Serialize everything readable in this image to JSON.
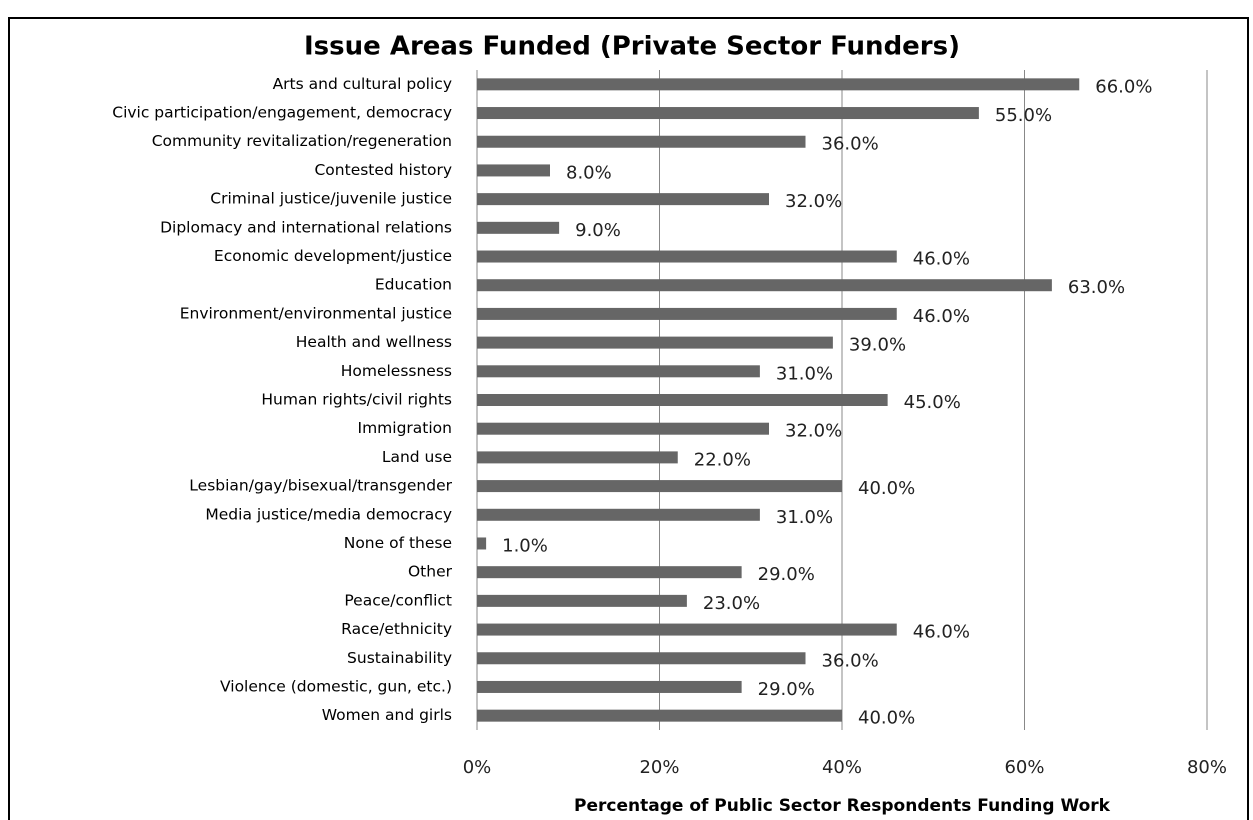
{
  "chart_data": {
    "type": "bar",
    "orientation": "horizontal",
    "title": "Issue Areas Funded (Private Sector Funders)",
    "x_label": "Percentage of Public Sector Respondents Funding Work",
    "categories": [
      "Arts and cultural policy",
      "Civic participation/engagement, democracy",
      "Community revitalization/regeneration",
      "Contested history",
      "Criminal justice/juvenile justice",
      "Diplomacy and international relations",
      "Economic development/justice",
      "Education",
      "Environment/environmental justice",
      "Health and wellness",
      "Homelessness",
      "Human rights/civil rights",
      "Immigration",
      "Land use",
      "Lesbian/gay/bisexual/transgender",
      "Media justice/media democracy",
      "None of these",
      "Other",
      "Peace/conflict",
      "Race/ethnicity",
      "Sustainability",
      "Violence (domestic, gun, etc.)",
      "Women and girls"
    ],
    "values": [
      66,
      55,
      36,
      8,
      32,
      9,
      46,
      63,
      46,
      39,
      31,
      45,
      32,
      22,
      40,
      31,
      1,
      29,
      23,
      46,
      36,
      29,
      40
    ],
    "value_labels": [
      "66.0%",
      "55.0%",
      "36.0%",
      "8.0%",
      "32.0%",
      "9.0%",
      "46.0%",
      "63.0%",
      "46.0%",
      "39.0%",
      "31.0%",
      "45.0%",
      "32.0%",
      "22.0%",
      "40.0%",
      "31.0%",
      "1.0%",
      "29.0%",
      "23.0%",
      "46.0%",
      "36.0%",
      "29.0%",
      "40.0%"
    ],
    "color": "#666666",
    "xlim": [
      0,
      80
    ],
    "xticks": [
      {
        "value": 0,
        "label": "0%"
      },
      {
        "value": 20,
        "label": "20%"
      },
      {
        "value": 40,
        "label": "40%"
      },
      {
        "value": 60,
        "label": "60%"
      },
      {
        "value": 80,
        "label": "80%"
      }
    ],
    "grid": true
  }
}
